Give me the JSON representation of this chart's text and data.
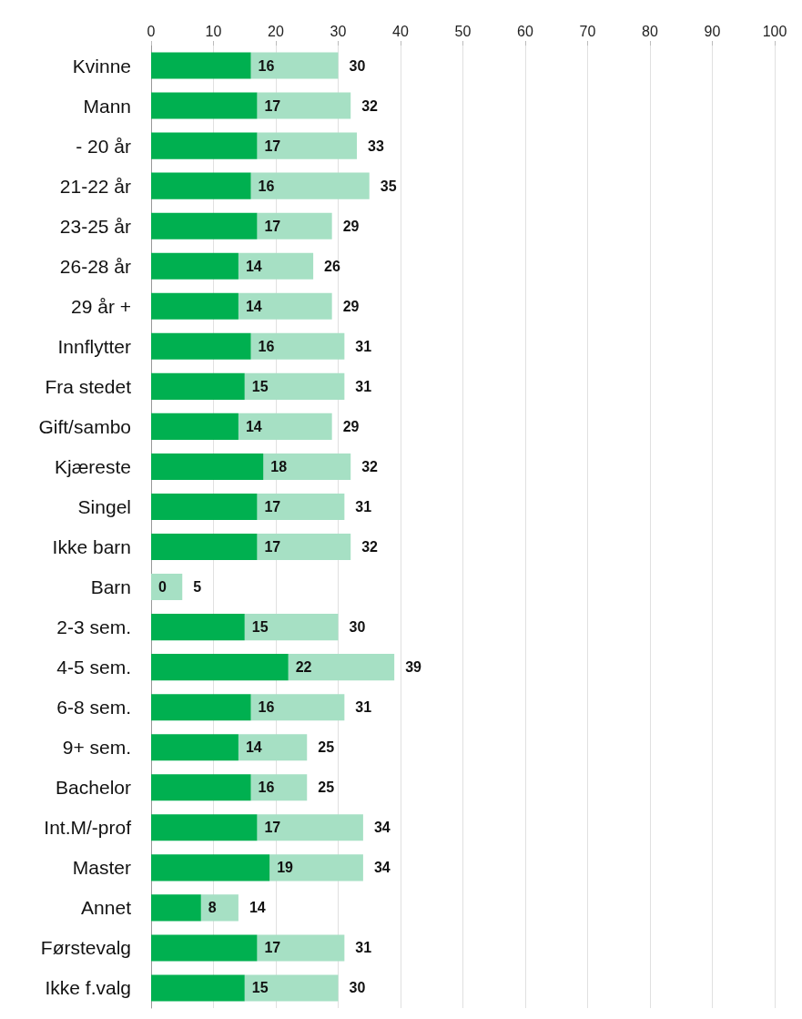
{
  "chart_data": {
    "type": "bar",
    "orientation": "horizontal",
    "stacked": true,
    "categories": [
      "Kvinne",
      "Mann",
      "- 20 år",
      "21-22 år",
      "23-25 år",
      "26-28 år",
      "29 år +",
      "Innflytter",
      "Fra stedet",
      "Gift/sambo",
      "Kjæreste",
      "Singel",
      "Ikke barn",
      "Barn",
      "2-3 sem.",
      "4-5 sem.",
      "6-8 sem.",
      "9+ sem.",
      "Bachelor",
      "Int.M/-prof",
      "Master",
      "Annet",
      "Førstevalg",
      "Ikke f.valg"
    ],
    "series": [
      {
        "color": "#00b050",
        "values": [
          16,
          17,
          17,
          16,
          17,
          14,
          14,
          16,
          15,
          14,
          18,
          17,
          17,
          0,
          15,
          22,
          16,
          14,
          16,
          17,
          19,
          8,
          17,
          15
        ],
        "value_labels": [
          "16",
          "17",
          "17",
          "16",
          "17",
          "14",
          "14",
          "16",
          "15",
          "14",
          "18",
          "17",
          "17",
          "0",
          "15",
          "22",
          "16",
          "14",
          "16",
          "17",
          "19",
          "8",
          "17",
          "15"
        ]
      },
      {
        "color": "#a6e0c4",
        "values": [
          14,
          15,
          16,
          19,
          12,
          12,
          15,
          15,
          16,
          15,
          14,
          14,
          15,
          5,
          15,
          17,
          15,
          11,
          9,
          17,
          15,
          6,
          14,
          15
        ]
      }
    ],
    "totals": [
      "30",
      "32",
      "33",
      "35",
      "29",
      "26",
      "29",
      "31",
      "31",
      "29",
      "32",
      "31",
      "32",
      "5",
      "30",
      "39",
      "31",
      "25",
      "25",
      "34",
      "34",
      "14",
      "31",
      "30"
    ],
    "xlim": [
      0,
      100
    ],
    "xticks": [
      0,
      10,
      20,
      30,
      40,
      50,
      60,
      70,
      80,
      90,
      100
    ],
    "grid": "x"
  }
}
